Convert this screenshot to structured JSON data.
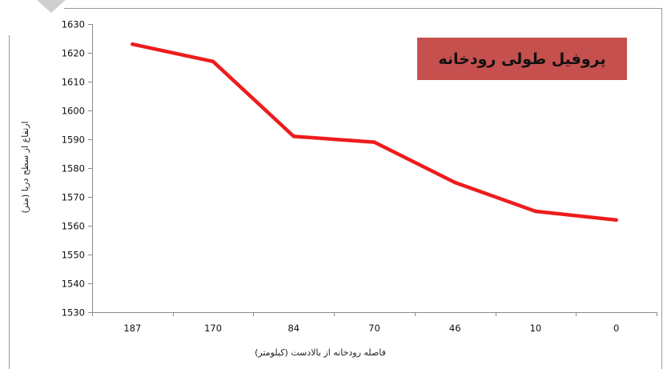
{
  "chart_data": {
    "type": "line",
    "title": "پروفیل طولی رودخانه",
    "xlabel": "فاصله رودخانه از بالادست (کیلومتر)",
    "ylabel": "ارتفاع از سطح دریا (متر)",
    "categories": [
      "187",
      "170",
      "84",
      "70",
      "46",
      "10",
      "0"
    ],
    "series": [
      {
        "values": [
          1623,
          1617,
          1591,
          1589,
          1575,
          1565,
          1562
        ]
      }
    ],
    "ylim": [
      1530,
      1630
    ],
    "yticks": [
      1530,
      1540,
      1550,
      1560,
      1570,
      1580,
      1590,
      1600,
      1610,
      1620,
      1630
    ],
    "grid": false,
    "legend": "none",
    "colors": {
      "line": "#ee1c1c",
      "title_box": "#c6504e",
      "axis": "#8a8a8a",
      "frame": "#9a9a9a"
    }
  }
}
